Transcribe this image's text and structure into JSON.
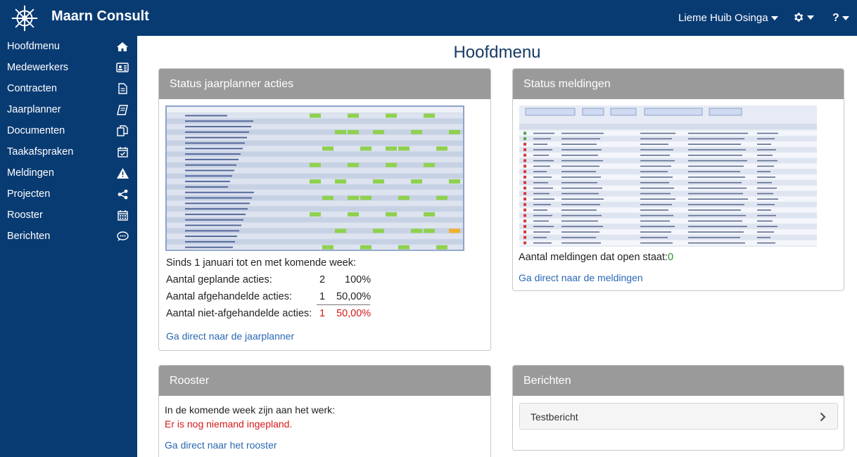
{
  "app": {
    "brand": "Maarn Consult",
    "user_menu": "Lieme Huib Osinga",
    "help_label": "?"
  },
  "sidebar": {
    "items": [
      {
        "label": "Hoofdmenu",
        "icon": "home-icon"
      },
      {
        "label": "Medewerkers",
        "icon": "id-card-icon"
      },
      {
        "label": "Contracten",
        "icon": "document-icon"
      },
      {
        "label": "Jaarplanner",
        "icon": "book-icon"
      },
      {
        "label": "Documenten",
        "icon": "copy-icon"
      },
      {
        "label": "Taakafspraken",
        "icon": "calendar-check-icon"
      },
      {
        "label": "Meldingen",
        "icon": "warning-icon"
      },
      {
        "label": "Projecten",
        "icon": "share-icon"
      },
      {
        "label": "Rooster",
        "icon": "calendar-icon"
      },
      {
        "label": "Berichten",
        "icon": "chat-icon"
      }
    ]
  },
  "main": {
    "title": "Hoofdmenu",
    "jaarplanner": {
      "title": "Status jaarplanner acties",
      "intro": "Sinds 1 januari tot en met komende week:",
      "rows": [
        {
          "label": "Aantal geplande acties:",
          "count": "2",
          "pct": "100%"
        },
        {
          "label": "Aantal afgehandelde acties:",
          "count": "1",
          "pct": "50,00%"
        },
        {
          "label": "Aantal niet-afgehandelde acties:",
          "count": "1",
          "pct": "50,00%"
        }
      ],
      "link": "Ga direct naar de jaarplanner"
    },
    "meldingen": {
      "title": "Status meldingen",
      "open_label": "Aantal meldingen dat open staat:",
      "open_count": "0",
      "link": "Ga direct naar de meldingen"
    },
    "rooster": {
      "title": "Rooster",
      "intro": "In de komende week zijn aan het werk:",
      "warning": "Er is nog niemand ingepland.",
      "link": "Ga direct naar het rooster"
    },
    "berichten": {
      "title": "Berichten",
      "items": [
        {
          "label": "Testbericht"
        }
      ]
    }
  },
  "colors": {
    "nav": "#093b73",
    "panel_header": "#9a9a9a",
    "link": "#2a68b4",
    "alert": "#d41a1a",
    "ok": "#2a8c2a"
  }
}
